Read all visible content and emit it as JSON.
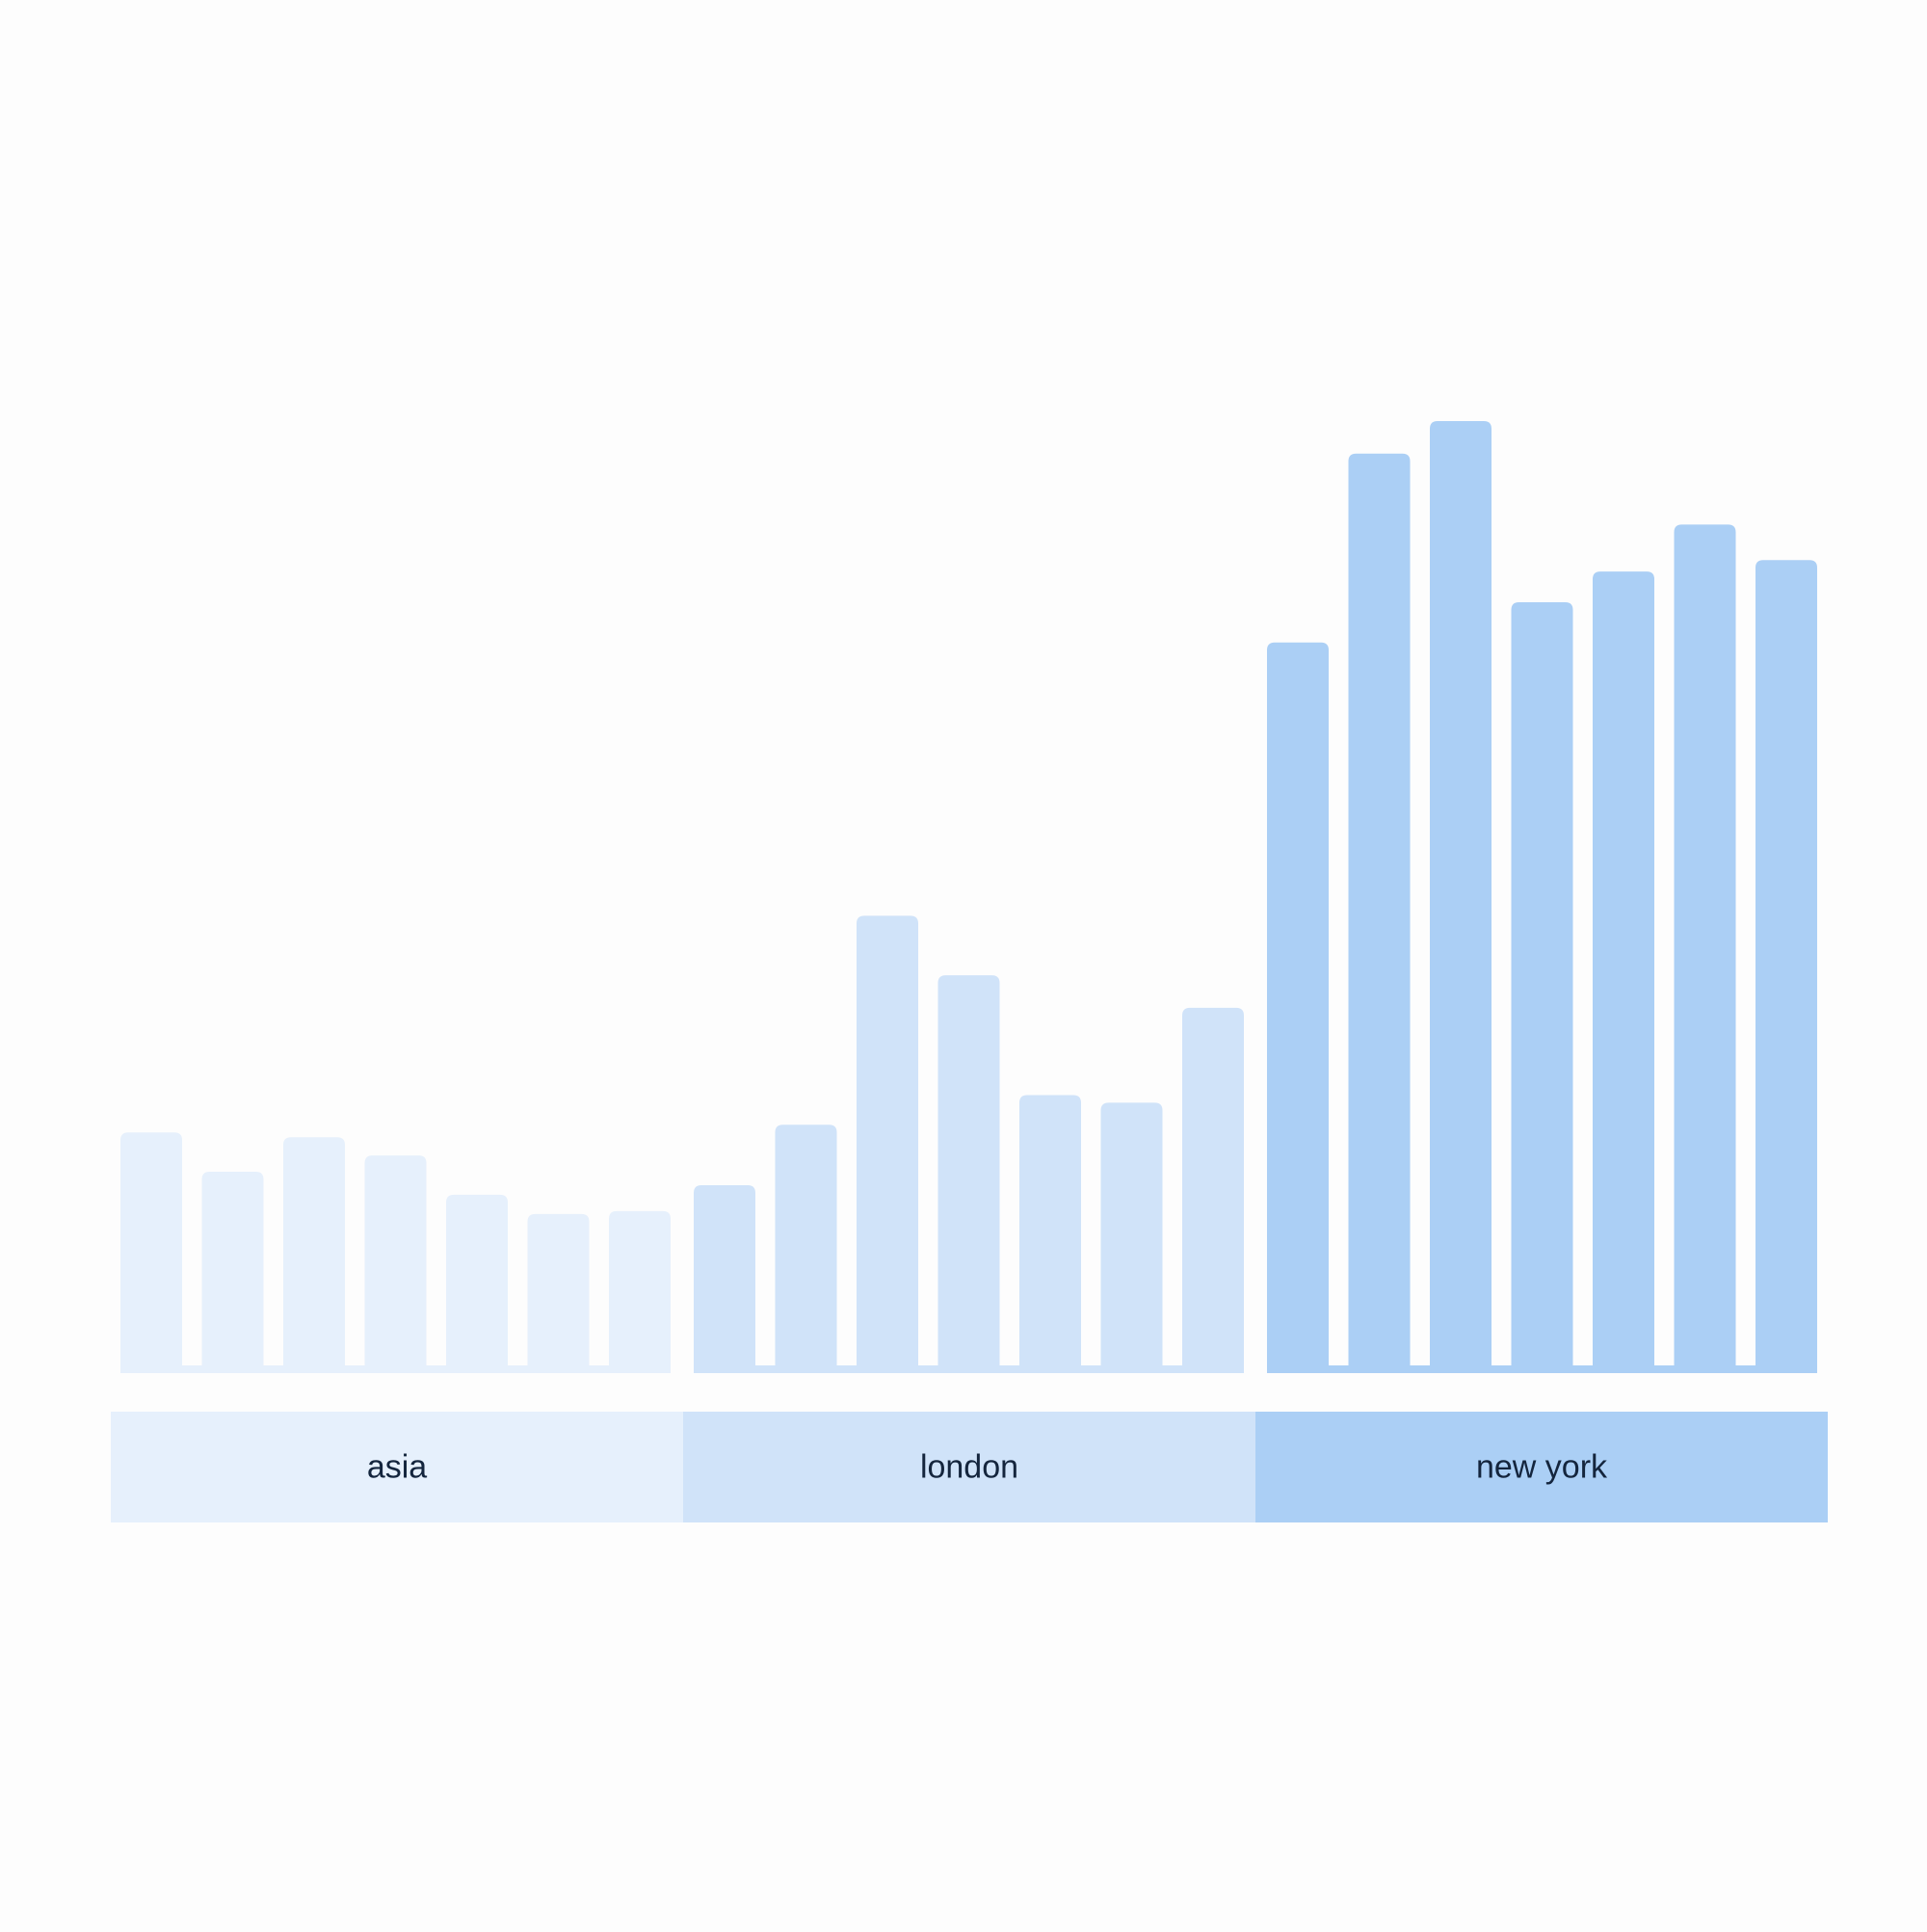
{
  "chart_data": {
    "type": "bar",
    "title": "",
    "xlabel": "",
    "ylabel": "",
    "ylim": [
      0,
      100
    ],
    "grid": false,
    "legend": "none",
    "groups": [
      {
        "label": "asia",
        "color": "#e6f0fc",
        "values": [
          25.1,
          21.0,
          24.6,
          22.7,
          18.6,
          16.6,
          16.9
        ]
      },
      {
        "label": "london",
        "color": "#d0e3f9",
        "values": [
          19.6,
          25.9,
          47.7,
          41.5,
          29.0,
          28.2,
          38.1
        ]
      },
      {
        "label": "new york",
        "color": "#abcff5",
        "values": [
          76.2,
          95.9,
          99.3,
          80.4,
          83.6,
          88.5,
          84.8
        ]
      }
    ]
  }
}
